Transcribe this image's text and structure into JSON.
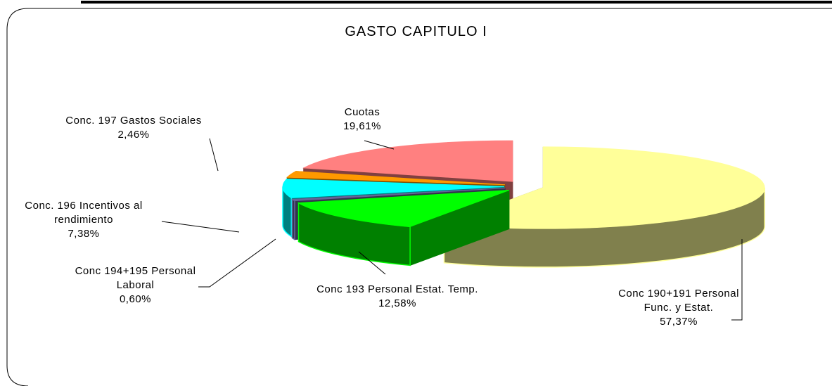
{
  "chart_data": {
    "type": "pie",
    "title": "GASTO CAPITULO I",
    "categories": [
      "Conc 190+191 Personal Func. y Estat.",
      "Conc 193 Personal Estat. Temp.",
      "Conc 194+195 Personal Laboral",
      "Conc. 196 Incentivos al rendimiento",
      "Conc. 197 Gastos Sociales",
      "Cuotas"
    ],
    "values": [
      57.37,
      12.58,
      0.6,
      7.38,
      2.46,
      19.61
    ],
    "value_labels": [
      "57,37%",
      "12,58%",
      "0,60%",
      "7,38%",
      "2,46%",
      "19,61%"
    ],
    "colors": [
      "#ffff99",
      "#00ff00",
      "#666699",
      "#00ffff",
      "#ff9900",
      "#ff8080"
    ]
  }
}
